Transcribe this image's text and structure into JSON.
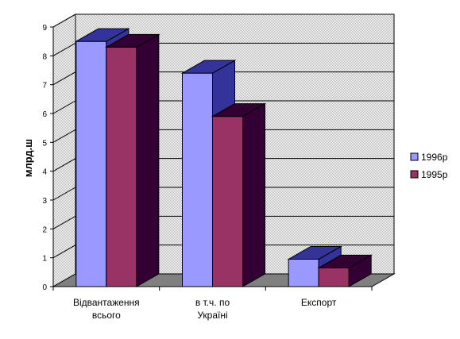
{
  "chart_data": {
    "type": "bar",
    "three_d": true,
    "ylabel": "млрд.ш",
    "ylim": [
      0,
      9
    ],
    "yticks": [
      "0",
      "1",
      "2",
      "3",
      "4",
      "5",
      "6",
      "7",
      "8",
      "9"
    ],
    "grid": true,
    "legend_position": "right",
    "categories": [
      [
        "Відвантаження",
        "всього"
      ],
      [
        "в т.ч. по",
        "Україні"
      ],
      [
        "Експорт"
      ]
    ],
    "series": [
      {
        "name": "1996р",
        "values": [
          8.5,
          7.4,
          0.95
        ],
        "color": "#9999ff",
        "side": "#333399"
      },
      {
        "name": "1995р",
        "values": [
          8.3,
          5.9,
          0.65
        ],
        "color": "#993366",
        "side": "#330033"
      }
    ]
  }
}
